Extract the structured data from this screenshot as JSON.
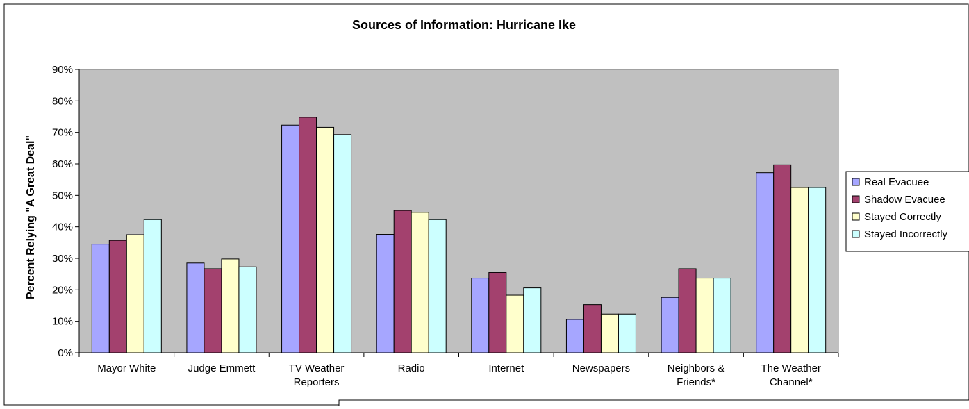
{
  "chart_data": {
    "type": "bar",
    "title": "Sources of Information: Hurricane Ike",
    "ylabel": "Percent Relying \"A Great Deal\"",
    "xlabel": "",
    "ylim": [
      0,
      90
    ],
    "yticks": [
      "0%",
      "10%",
      "20%",
      "30%",
      "40%",
      "50%",
      "60%",
      "70%",
      "80%",
      "90%"
    ],
    "grid": false,
    "legend_position": "right",
    "categories": [
      [
        "Mayor White"
      ],
      [
        "Judge Emmett"
      ],
      [
        "TV Weather",
        "Reporters"
      ],
      [
        "Radio"
      ],
      [
        "Internet"
      ],
      [
        "Newspapers"
      ],
      [
        "Neighbors &",
        "Friends*"
      ],
      [
        "The Weather",
        "Channel*"
      ]
    ],
    "series": [
      {
        "name": "Real Evacuee",
        "color": "#a6a6ff",
        "values": [
          34.5,
          28.5,
          72.3,
          37.6,
          23.7,
          10.6,
          17.6,
          57.2
        ]
      },
      {
        "name": "Shadow Evacuee",
        "color": "#a3416e",
        "values": [
          35.7,
          26.7,
          74.8,
          45.2,
          25.5,
          15.3,
          26.7,
          59.7
        ]
      },
      {
        "name": "Stayed Correctly",
        "color": "#ffffcc",
        "values": [
          37.5,
          29.8,
          71.6,
          44.6,
          18.3,
          12.3,
          23.7,
          52.5
        ]
      },
      {
        "name": "Stayed Incorrectly",
        "color": "#ccffff",
        "values": [
          42.3,
          27.3,
          69.3,
          42.3,
          20.6,
          12.3,
          23.7,
          52.5
        ]
      }
    ],
    "plot_background": "#c0c0c0"
  }
}
